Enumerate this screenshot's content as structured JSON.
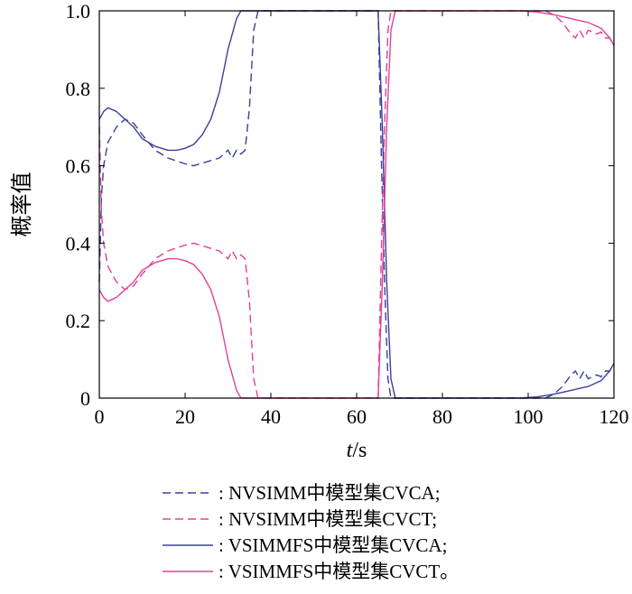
{
  "chart_data": {
    "type": "line",
    "xlabel_italic": "t",
    "xlabel_rest": "/s",
    "ylabel": "概率值",
    "xlim": [
      0,
      120
    ],
    "ylim": [
      0,
      1.0
    ],
    "x_ticks": [
      0,
      20,
      40,
      60,
      80,
      100,
      120
    ],
    "x_tick_labels": [
      "0",
      "20",
      "40",
      "60",
      "80",
      "100",
      "120"
    ],
    "y_ticks": [
      0,
      0.2,
      0.4,
      0.6,
      0.8,
      1.0
    ],
    "y_tick_labels": [
      "0",
      "0.2",
      "0.4",
      "0.6",
      "0.8",
      "1.0"
    ],
    "grid": false,
    "legend_position": "bottom",
    "series": [
      {
        "name": ": NVSIMM中模型集CVCA;",
        "color": "#3b3f9a",
        "dash": true,
        "points": [
          [
            0,
            0.3
          ],
          [
            0.5,
            0.52
          ],
          [
            1,
            0.6
          ],
          [
            2,
            0.66
          ],
          [
            4,
            0.7
          ],
          [
            6,
            0.72
          ],
          [
            8,
            0.71
          ],
          [
            10,
            0.68
          ],
          [
            13,
            0.64
          ],
          [
            16,
            0.62
          ],
          [
            20,
            0.605
          ],
          [
            22,
            0.6
          ],
          [
            25,
            0.61
          ],
          [
            28,
            0.62
          ],
          [
            30,
            0.64
          ],
          [
            31,
            0.62
          ],
          [
            32,
            0.64
          ],
          [
            33,
            0.63
          ],
          [
            34,
            0.64
          ],
          [
            35,
            0.75
          ],
          [
            36,
            0.95
          ],
          [
            37,
            1.0
          ],
          [
            65,
            1.0
          ],
          [
            65.8,
            0.6
          ],
          [
            66.5,
            0.3
          ],
          [
            67.3,
            0.05
          ],
          [
            68,
            0.0
          ],
          [
            104,
            0.0
          ],
          [
            106,
            0.01
          ],
          [
            108,
            0.03
          ],
          [
            110,
            0.06
          ],
          [
            111,
            0.07
          ],
          [
            112,
            0.05
          ],
          [
            113,
            0.07
          ],
          [
            114,
            0.05
          ],
          [
            116,
            0.06
          ],
          [
            117,
            0.055
          ],
          [
            118,
            0.07
          ],
          [
            119,
            0.07
          ],
          [
            120,
            0.09
          ]
        ]
      },
      {
        "name": ": NVSIMM中模型集CVCT;",
        "color": "#e0409a",
        "dash": true,
        "points": [
          [
            0,
            0.7
          ],
          [
            0.5,
            0.48
          ],
          [
            1,
            0.4
          ],
          [
            2,
            0.34
          ],
          [
            4,
            0.3
          ],
          [
            6,
            0.28
          ],
          [
            8,
            0.29
          ],
          [
            10,
            0.32
          ],
          [
            13,
            0.36
          ],
          [
            16,
            0.38
          ],
          [
            20,
            0.395
          ],
          [
            22,
            0.4
          ],
          [
            25,
            0.39
          ],
          [
            28,
            0.38
          ],
          [
            30,
            0.36
          ],
          [
            31,
            0.38
          ],
          [
            32,
            0.36
          ],
          [
            33,
            0.37
          ],
          [
            34,
            0.36
          ],
          [
            35,
            0.25
          ],
          [
            36,
            0.05
          ],
          [
            37,
            0.0
          ],
          [
            65,
            0.0
          ],
          [
            65.8,
            0.4
          ],
          [
            66.5,
            0.7
          ],
          [
            67.3,
            0.95
          ],
          [
            68,
            1.0
          ],
          [
            104,
            1.0
          ],
          [
            106,
            0.99
          ],
          [
            108,
            0.97
          ],
          [
            110,
            0.94
          ],
          [
            111,
            0.93
          ],
          [
            112,
            0.95
          ],
          [
            113,
            0.93
          ],
          [
            114,
            0.95
          ],
          [
            116,
            0.94
          ],
          [
            117,
            0.945
          ],
          [
            118,
            0.93
          ],
          [
            119,
            0.93
          ],
          [
            120,
            0.91
          ]
        ]
      },
      {
        "name": ": VSIMMFS中模型集CVCA;",
        "color": "#3b3f9a",
        "dash": false,
        "points": [
          [
            0,
            0.72
          ],
          [
            1,
            0.74
          ],
          [
            2,
            0.75
          ],
          [
            4,
            0.74
          ],
          [
            6,
            0.72
          ],
          [
            8,
            0.7
          ],
          [
            10,
            0.67
          ],
          [
            13,
            0.65
          ],
          [
            16,
            0.64
          ],
          [
            18,
            0.64
          ],
          [
            20,
            0.645
          ],
          [
            22,
            0.655
          ],
          [
            24,
            0.68
          ],
          [
            26,
            0.72
          ],
          [
            28,
            0.79
          ],
          [
            30,
            0.9
          ],
          [
            32,
            0.98
          ],
          [
            33,
            1.0
          ],
          [
            65,
            1.0
          ],
          [
            66,
            0.7
          ],
          [
            67,
            0.3
          ],
          [
            68,
            0.05
          ],
          [
            69,
            0.0
          ],
          [
            98,
            0.0
          ],
          [
            102,
            0.003
          ],
          [
            106,
            0.01
          ],
          [
            110,
            0.02
          ],
          [
            114,
            0.03
          ],
          [
            117,
            0.045
          ],
          [
            119,
            0.07
          ],
          [
            120,
            0.09
          ]
        ]
      },
      {
        "name": ": VSIMMFS中模型集CVCT。",
        "color": "#e0409a",
        "dash": false,
        "points": [
          [
            0,
            0.28
          ],
          [
            1,
            0.26
          ],
          [
            2,
            0.25
          ],
          [
            4,
            0.26
          ],
          [
            6,
            0.28
          ],
          [
            8,
            0.3
          ],
          [
            10,
            0.33
          ],
          [
            13,
            0.35
          ],
          [
            16,
            0.36
          ],
          [
            18,
            0.36
          ],
          [
            20,
            0.355
          ],
          [
            22,
            0.345
          ],
          [
            24,
            0.32
          ],
          [
            26,
            0.28
          ],
          [
            28,
            0.21
          ],
          [
            30,
            0.1
          ],
          [
            32,
            0.02
          ],
          [
            33,
            0.0
          ],
          [
            65,
            0.0
          ],
          [
            66,
            0.3
          ],
          [
            67,
            0.7
          ],
          [
            68,
            0.95
          ],
          [
            69,
            1.0
          ],
          [
            98,
            1.0
          ],
          [
            102,
            0.997
          ],
          [
            106,
            0.99
          ],
          [
            110,
            0.98
          ],
          [
            114,
            0.97
          ],
          [
            117,
            0.955
          ],
          [
            119,
            0.93
          ],
          [
            120,
            0.91
          ]
        ]
      }
    ]
  }
}
